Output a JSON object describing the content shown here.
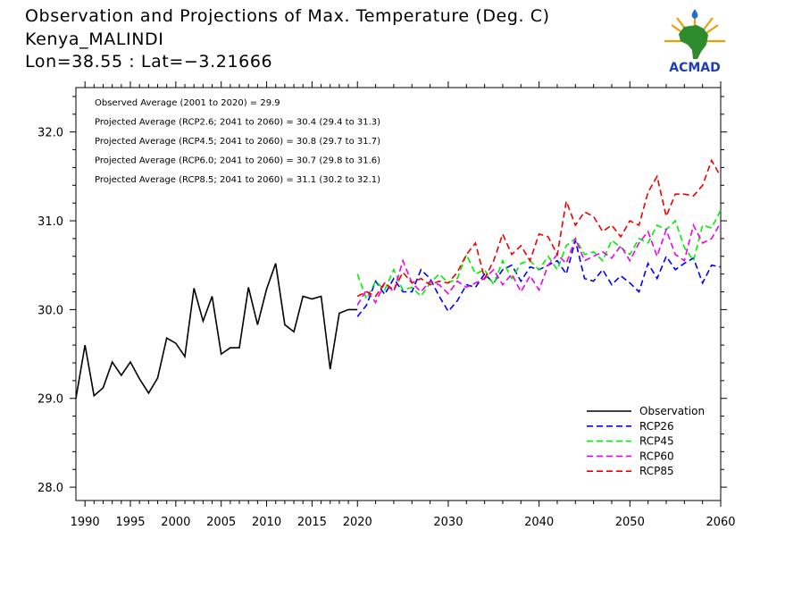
{
  "header": {
    "title": "Observation and Projections of Max. Temperature (Deg. C)",
    "location": "Kenya_MALINDI",
    "coords": "Lon=38.55 : Lat=−3.21666"
  },
  "logo": {
    "text": "ACMAD"
  },
  "annotations": [
    "Observed Average (2001 to 2020) = 29.9",
    "Projected Average (RCP2.6; 2041 to 2060) = 30.4 (29.4 to 31.3)",
    "Projected Average (RCP4.5; 2041 to 2060) = 30.8 (29.7 to 31.7)",
    "Projected Average (RCP6.0; 2041 to 2060) = 30.7 (29.8 to 31.6)",
    "Projected Average (RCP8.5; 2041 to 2060) = 31.1 (30.2 to 32.1)"
  ],
  "colors": {
    "Observation": "#000000",
    "RCP26": "#0000ee",
    "RCP45": "#00ee00",
    "RCP60": "#ee00ee",
    "RCP85": "#ee0000"
  },
  "chart_data": {
    "type": "line",
    "xlim": [
      1989,
      2060
    ],
    "ylim": [
      27.85,
      32.5
    ],
    "grid": false,
    "legend_position": "bottom-right",
    "x_ticks": {
      "positions": [
        1990,
        1995,
        2000,
        2005,
        2010,
        2015,
        2020,
        2030,
        2040,
        2050,
        2060
      ],
      "labels": [
        "1990",
        "1995",
        "2000",
        "2005",
        "2010",
        "2015",
        "2020",
        "2030",
        "2040",
        "2050",
        "2060"
      ]
    },
    "y_ticks": {
      "positions": [
        28,
        29,
        30,
        31,
        32
      ],
      "labels": [
        "28.0",
        "29.0",
        "30.0",
        "31.0",
        "32.0"
      ]
    },
    "series": [
      {
        "name": "Observation",
        "style": "solid",
        "x": [
          1989,
          1990,
          1991,
          1992,
          1993,
          1994,
          1995,
          1996,
          1997,
          1998,
          1999,
          2000,
          2001,
          2002,
          2003,
          2004,
          2005,
          2006,
          2007,
          2008,
          2009,
          2010,
          2011,
          2012,
          2013,
          2014,
          2015,
          2016,
          2017,
          2018,
          2019,
          2020
        ],
        "y": [
          29.0,
          29.6,
          29.03,
          29.12,
          29.41,
          29.26,
          29.41,
          29.22,
          29.06,
          29.23,
          29.68,
          29.62,
          29.47,
          30.24,
          29.87,
          30.15,
          29.5,
          29.57,
          29.57,
          30.25,
          29.83,
          30.23,
          30.52,
          29.83,
          29.75,
          30.15,
          30.12,
          30.15,
          29.33,
          29.96,
          30.0,
          30.0
        ]
      },
      {
        "name": "RCP26",
        "style": "dashed",
        "x": [
          2020,
          2021,
          2022,
          2023,
          2024,
          2025,
          2026,
          2027,
          2028,
          2029,
          2030,
          2031,
          2032,
          2033,
          2034,
          2035,
          2036,
          2037,
          2038,
          2039,
          2040,
          2041,
          2042,
          2043,
          2044,
          2045,
          2046,
          2047,
          2048,
          2049,
          2050,
          2051,
          2052,
          2053,
          2054,
          2055,
          2056,
          2057,
          2058,
          2059,
          2060
        ],
        "y": [
          29.92,
          30.05,
          30.32,
          30.17,
          30.35,
          30.2,
          30.2,
          30.45,
          30.35,
          30.15,
          29.98,
          30.1,
          30.28,
          30.25,
          30.4,
          30.3,
          30.45,
          30.5,
          30.32,
          30.48,
          30.45,
          30.5,
          30.55,
          30.4,
          30.78,
          30.35,
          30.32,
          30.45,
          30.28,
          30.38,
          30.3,
          30.2,
          30.52,
          30.35,
          30.6,
          30.45,
          30.52,
          30.58,
          30.3,
          30.5,
          30.48
        ]
      },
      {
        "name": "RCP45",
        "style": "dashed",
        "x": [
          2020,
          2021,
          2022,
          2023,
          2024,
          2025,
          2026,
          2027,
          2028,
          2029,
          2030,
          2031,
          2032,
          2033,
          2034,
          2035,
          2036,
          2037,
          2038,
          2039,
          2040,
          2041,
          2042,
          2043,
          2044,
          2045,
          2046,
          2047,
          2048,
          2049,
          2050,
          2051,
          2052,
          2053,
          2054,
          2055,
          2056,
          2057,
          2058,
          2059,
          2060
        ],
        "y": [
          30.4,
          30.12,
          30.32,
          30.22,
          30.45,
          30.22,
          30.25,
          30.15,
          30.3,
          30.4,
          30.3,
          30.35,
          30.62,
          30.4,
          30.45,
          30.28,
          30.55,
          30.35,
          30.52,
          30.55,
          30.45,
          30.6,
          30.45,
          30.72,
          30.8,
          30.62,
          30.65,
          30.55,
          30.78,
          30.7,
          30.62,
          30.8,
          30.75,
          30.95,
          30.9,
          31.0,
          30.7,
          30.55,
          30.95,
          30.92,
          31.12
        ]
      },
      {
        "name": "RCP60",
        "style": "dashed",
        "x": [
          2020,
          2021,
          2022,
          2023,
          2024,
          2025,
          2026,
          2027,
          2028,
          2029,
          2030,
          2031,
          2032,
          2033,
          2034,
          2035,
          2036,
          2037,
          2038,
          2039,
          2040,
          2041,
          2042,
          2043,
          2044,
          2045,
          2046,
          2047,
          2048,
          2049,
          2050,
          2051,
          2052,
          2053,
          2054,
          2055,
          2056,
          2057,
          2058,
          2059,
          2060
        ],
        "y": [
          30.05,
          30.22,
          30.08,
          30.3,
          30.2,
          30.55,
          30.3,
          30.2,
          30.32,
          30.28,
          30.18,
          30.32,
          30.25,
          30.3,
          30.35,
          30.45,
          30.28,
          30.4,
          30.2,
          30.38,
          30.22,
          30.5,
          30.62,
          30.52,
          30.8,
          30.55,
          30.6,
          30.65,
          30.58,
          30.72,
          30.55,
          30.75,
          30.88,
          30.6,
          30.9,
          30.62,
          30.55,
          30.95,
          30.75,
          30.8,
          30.98
        ]
      },
      {
        "name": "RCP85",
        "style": "dashed",
        "x": [
          2020,
          2021,
          2022,
          2023,
          2024,
          2025,
          2026,
          2027,
          2028,
          2029,
          2030,
          2031,
          2032,
          2033,
          2034,
          2035,
          2036,
          2037,
          2038,
          2039,
          2040,
          2041,
          2042,
          2043,
          2044,
          2045,
          2046,
          2047,
          2048,
          2049,
          2050,
          2051,
          2052,
          2053,
          2054,
          2055,
          2056,
          2057,
          2058,
          2059,
          2060
        ],
        "y": [
          30.15,
          30.2,
          30.15,
          30.3,
          30.22,
          30.42,
          30.3,
          30.35,
          30.28,
          30.32,
          30.3,
          30.42,
          30.62,
          30.75,
          30.35,
          30.55,
          30.85,
          30.62,
          30.72,
          30.55,
          30.85,
          30.82,
          30.62,
          31.22,
          30.95,
          31.1,
          31.05,
          30.88,
          30.95,
          30.82,
          31.0,
          30.95,
          31.32,
          31.5,
          31.05,
          31.3,
          31.3,
          31.28,
          31.4,
          31.68,
          31.5
        ]
      }
    ]
  }
}
